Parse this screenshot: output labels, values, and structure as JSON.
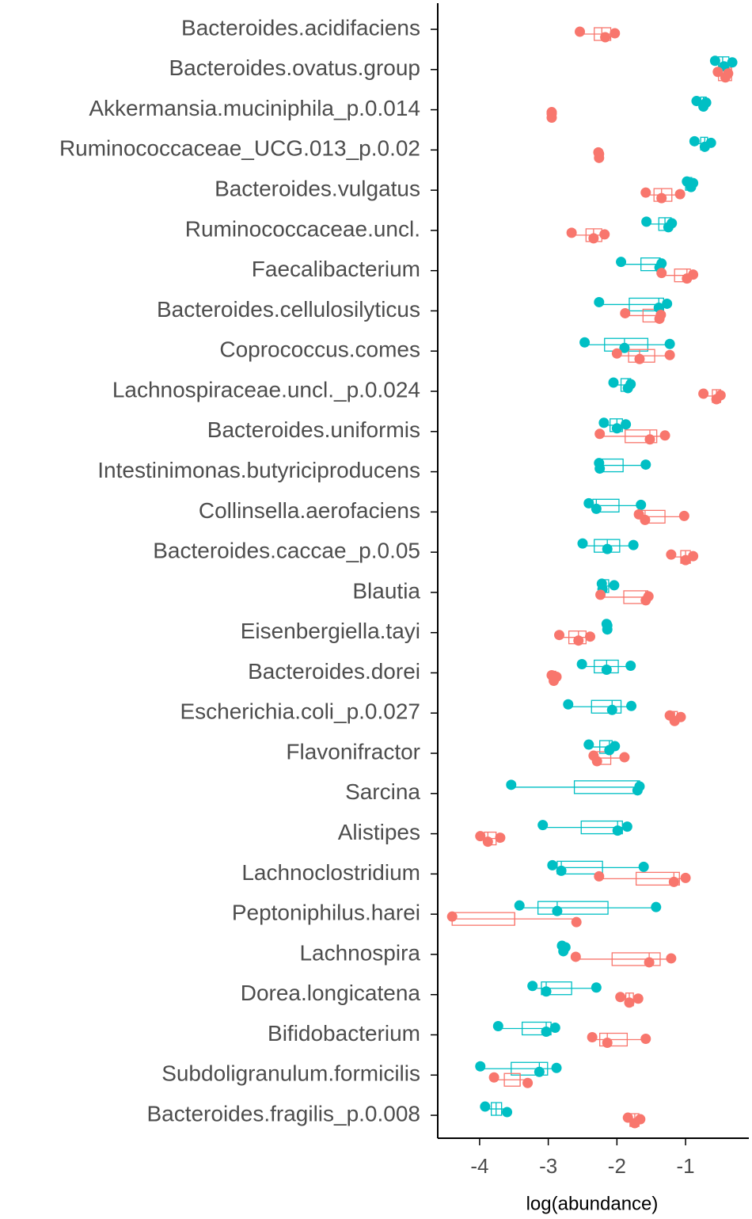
{
  "chart_data": {
    "type": "boxplot",
    "orientation": "horizontal",
    "x_label": "log(abundance)",
    "categories": [
      "Bacteroides.acidifaciens",
      "Bacteroides.ovatus.group",
      "Akkermansia.muciniphila_p.0.014",
      "Ruminococcaceae_UCG.013_p.0.02",
      "Bacteroides.vulgatus",
      "Ruminococcaceae.uncl.",
      "Faecalibacterium",
      "Bacteroides.cellulosilyticus",
      "Coprococcus.comes",
      "Lachnospiraceae.uncl._p.0.024",
      "Bacteroides.uniformis",
      "Intestinimonas.butyriciproducens",
      "Collinsella.aerofaciens",
      "Bacteroides.caccae_p.0.05",
      "Blautia",
      "Eisenbergiella.tayi",
      "Bacteroides.dorei",
      "Escherichia.coli_p.0.027",
      "Flavonifractor",
      "Sarcina",
      "Alistipes",
      "Lachnoclostridium",
      "Peptoniphilus.harei",
      "Lachnospira",
      "Dorea.longicatena",
      "Bifidobacterium",
      "Subdoligranulum.formicilis",
      "Bacteroides.fragilis_p.0.008"
    ],
    "xlim": [
      -4.61,
      -0.09
    ],
    "xticks": [
      -4,
      -3,
      -2,
      -1
    ],
    "series": [
      {
        "color": "#00BFC4",
        "boxes": [
          null,
          [
            -0.57,
            -0.52,
            -0.46,
            -0.37,
            -0.32
          ],
          [
            -0.84,
            -0.78,
            -0.74,
            -0.7,
            -0.7
          ],
          [
            -0.87,
            -0.78,
            -0.72,
            -0.68,
            -0.63
          ],
          [
            -1.0,
            -1.0,
            -0.96,
            -0.91,
            -0.89
          ],
          [
            -1.57,
            -1.39,
            -1.3,
            -1.21,
            -1.2
          ],
          [
            -1.94,
            -1.65,
            -1.38,
            -1.37,
            -1.35
          ],
          [
            -2.26,
            -1.82,
            -1.39,
            -1.32,
            -1.27
          ],
          [
            -2.47,
            -2.18,
            -1.89,
            -1.55,
            -1.23
          ],
          [
            -2.05,
            -1.94,
            -1.84,
            -1.8,
            -1.8
          ],
          [
            -2.19,
            -2.1,
            -2.0,
            -1.92,
            -1.87
          ],
          [
            -2.26,
            -2.25,
            -2.25,
            -1.91,
            -1.58
          ],
          [
            -2.41,
            -2.35,
            -2.3,
            -1.97,
            -1.65
          ],
          [
            -2.5,
            -2.33,
            -2.14,
            -1.96,
            -1.76
          ],
          [
            -2.22,
            -2.21,
            -2.18,
            -2.12,
            -2.04
          ],
          [
            -2.15,
            -2.14,
            -2.14,
            -2.14,
            -2.14
          ],
          [
            -2.51,
            -2.33,
            -2.15,
            -1.98,
            -1.8
          ],
          [
            -2.71,
            -2.37,
            -2.07,
            -1.94,
            -1.79
          ],
          [
            -2.41,
            -2.25,
            -2.11,
            -2.07,
            -2.03
          ],
          [
            -3.54,
            -2.62,
            -1.7,
            -1.67,
            -1.67
          ],
          [
            -3.08,
            -2.52,
            -1.99,
            -1.92,
            -1.85
          ],
          [
            -2.94,
            -2.87,
            -2.81,
            -2.21,
            -1.61
          ],
          [
            -3.42,
            -3.15,
            -2.87,
            -2.13,
            -1.43
          ],
          [
            -2.8,
            -2.79,
            -2.78,
            -2.77,
            -2.75
          ],
          [
            -3.23,
            -3.1,
            -3.03,
            -2.66,
            -2.3
          ],
          [
            -3.73,
            -3.38,
            -3.03,
            -2.96,
            -2.9
          ],
          [
            -3.99,
            -3.54,
            -3.13,
            -3.01,
            -2.88
          ],
          [
            -3.92,
            -3.83,
            -3.76,
            -3.68,
            -3.6
          ]
        ],
        "points": [
          null,
          [
            -0.57,
            -0.44,
            -0.32
          ],
          [
            -0.84,
            -0.74,
            -0.7
          ],
          [
            -0.87,
            -0.72,
            -0.63
          ],
          [
            -0.98,
            -0.92,
            -0.89
          ],
          [
            -1.57,
            -1.25,
            -1.2
          ],
          [
            -1.94,
            -1.38,
            -1.35
          ],
          [
            -2.26,
            -1.39,
            -1.27
          ],
          [
            -2.47,
            -1.89,
            -1.23
          ],
          [
            -2.05,
            -1.84,
            -1.8
          ],
          [
            -2.19,
            -2.0,
            -1.87
          ],
          [
            -2.26,
            -2.25,
            -1.58
          ],
          [
            -2.41,
            -2.3,
            -1.65
          ],
          [
            -2.5,
            -2.14,
            -1.76
          ],
          [
            -2.22,
            -2.21,
            -2.04
          ],
          [
            -2.15,
            -2.14,
            -2.14
          ],
          [
            -2.51,
            -2.15,
            -1.8
          ],
          [
            -2.71,
            -2.07,
            -1.79
          ],
          [
            -2.41,
            -2.11,
            -2.03
          ],
          [
            -3.54,
            -1.7,
            -1.67
          ],
          [
            -3.08,
            -1.99,
            -1.85
          ],
          [
            -2.94,
            -2.81,
            -1.61
          ],
          [
            -3.42,
            -2.87,
            -1.43
          ],
          [
            -2.8,
            -2.78,
            -2.75
          ],
          [
            -3.23,
            -3.03,
            -2.3
          ],
          [
            -3.73,
            -3.03,
            -2.9
          ],
          [
            -3.99,
            -3.13,
            -2.88
          ],
          [
            -3.92,
            -3.6
          ]
        ]
      },
      {
        "color": "#F8766D",
        "boxes": [
          [
            -2.54,
            -2.33,
            -2.22,
            -2.09,
            -2.03
          ],
          [
            -0.53,
            -0.52,
            -0.44,
            -0.33,
            -0.33
          ],
          [
            -2.95,
            -2.95,
            -2.95,
            -2.95,
            -2.95
          ],
          [
            -2.27,
            -2.26,
            -2.26,
            -2.26,
            -2.26
          ],
          [
            -1.58,
            -1.46,
            -1.35,
            -1.2,
            -1.08
          ],
          [
            -2.66,
            -2.45,
            -2.34,
            -2.22,
            -2.18
          ],
          [
            -1.35,
            -1.16,
            -0.98,
            -0.93,
            -0.89
          ],
          [
            -1.88,
            -1.62,
            -1.38,
            -1.37,
            -1.36
          ],
          [
            -2.0,
            -1.83,
            -1.67,
            -1.45,
            -1.23
          ],
          [
            -0.74,
            -0.61,
            -0.55,
            -0.49,
            -0.49
          ],
          [
            -2.25,
            -1.88,
            -1.52,
            -1.42,
            -1.3
          ],
          null,
          [
            -1.68,
            -1.64,
            -1.59,
            -1.3,
            -1.02
          ],
          [
            -1.21,
            -1.07,
            -1.0,
            -0.93,
            -0.89
          ],
          [
            -2.24,
            -1.9,
            -1.58,
            -1.55,
            -1.54
          ],
          [
            -2.84,
            -2.7,
            -2.56,
            -2.45,
            -2.39
          ],
          [
            -2.95,
            -2.94,
            -2.92,
            -2.89,
            -2.88
          ],
          [
            -1.23,
            -1.2,
            -1.16,
            -1.12,
            -1.07
          ],
          [
            -2.34,
            -2.32,
            -2.29,
            -2.09,
            -1.89
          ],
          null,
          [
            -3.99,
            -3.93,
            -3.88,
            -3.76,
            -3.7
          ],
          [
            -2.26,
            -1.72,
            -1.17,
            -1.09,
            -1.0
          ],
          [
            -4.4,
            -4.4,
            -3.49,
            -3.49,
            -2.59
          ],
          [
            -2.6,
            -2.07,
            -1.53,
            -1.37,
            -1.21
          ],
          [
            -1.95,
            -1.87,
            -1.82,
            -1.76,
            -1.69
          ],
          [
            -2.36,
            -2.25,
            -2.14,
            -1.85,
            -1.58
          ],
          [
            -3.79,
            -3.64,
            -3.41,
            -3.41,
            -3.3
          ],
          [
            -1.84,
            -1.81,
            -1.74,
            -1.68,
            -1.66
          ]
        ],
        "points": [
          [
            -2.54,
            -2.17,
            -2.03
          ],
          [
            -0.53,
            -0.42,
            -0.38
          ],
          [
            -2.95,
            -2.95,
            -2.95
          ],
          [
            -2.27,
            -2.26,
            -2.26
          ],
          [
            -1.58,
            -1.35,
            -1.08
          ],
          [
            -2.66,
            -2.34,
            -2.18
          ],
          [
            -1.35,
            -0.98,
            -0.89
          ],
          [
            -1.88,
            -1.38,
            -1.36
          ],
          [
            -2.0,
            -1.67,
            -1.23
          ],
          [
            -0.74,
            -0.55,
            -0.49
          ],
          [
            -2.25,
            -1.52,
            -1.3
          ],
          null,
          [
            -1.68,
            -1.59,
            -1.02
          ],
          [
            -1.21,
            -1.0,
            -0.89
          ],
          [
            -2.24,
            -1.58,
            -1.54
          ],
          [
            -2.84,
            -2.56,
            -2.39
          ],
          [
            -2.95,
            -2.92,
            -2.88
          ],
          [
            -1.23,
            -1.16,
            -1.07
          ],
          [
            -2.34,
            -2.29,
            -1.89
          ],
          null,
          [
            -3.99,
            -3.88,
            -3.7
          ],
          [
            -2.26,
            -1.17,
            -1.0
          ],
          [
            -4.4,
            -2.59
          ],
          [
            -2.6,
            -1.53,
            -1.21
          ],
          [
            -1.95,
            -1.82,
            -1.69
          ],
          [
            -2.36,
            -2.14,
            -1.58
          ],
          [
            -3.79,
            -3.3
          ],
          [
            -1.84,
            -1.74,
            -1.66
          ]
        ]
      }
    ]
  }
}
